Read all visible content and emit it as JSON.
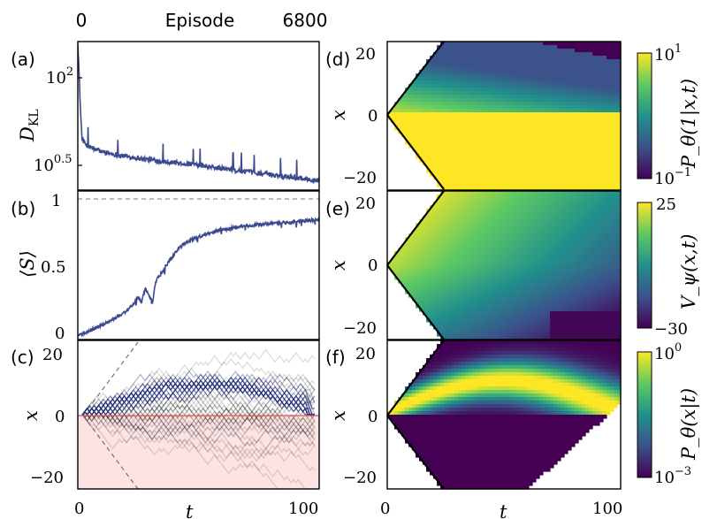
{
  "top_axis": {
    "label": "Episode",
    "ticks": [
      "0",
      "6800"
    ],
    "range": [
      0,
      6800
    ]
  },
  "chart_data": [
    {
      "id": "a",
      "panel_label": "(a)",
      "type": "line",
      "ylabel": "D_KL",
      "yscale": "log",
      "ylim": [
        2.3,
        160
      ],
      "yticks": [
        {
          "value": 100,
          "label": "10^2"
        },
        {
          "value": 3.16,
          "label": "10^0.5"
        }
      ],
      "xlim": [
        0,
        6800
      ],
      "series": [
        {
          "color": "#3b4a8c",
          "points": [
            [
              0,
              160
            ],
            [
              40,
              60
            ],
            [
              80,
              20
            ],
            [
              120,
              10
            ],
            [
              200,
              8.6
            ],
            [
              400,
              7.6
            ],
            [
              700,
              6.9
            ],
            [
              1000,
              6.4
            ],
            [
              1500,
              5.9
            ],
            [
              2000,
              5.5
            ],
            [
              2500,
              5.2
            ],
            [
              3000,
              4.9
            ],
            [
              3500,
              4.6
            ],
            [
              4000,
              4.3
            ],
            [
              4500,
              4.0
            ],
            [
              5000,
              3.8
            ],
            [
              5500,
              3.55
            ],
            [
              6000,
              3.35
            ],
            [
              6500,
              3.15
            ],
            [
              6800,
              3.05
            ]
          ]
        }
      ]
    },
    {
      "id": "b",
      "panel_label": "(b)",
      "type": "line",
      "ylabel": "⟨S⟩",
      "ylim": [
        -0.03,
        1.07
      ],
      "yticks": [
        {
          "value": 1,
          "label": "1"
        },
        {
          "value": 0.5,
          "label": "0.5"
        },
        {
          "value": 0,
          "label": "0"
        }
      ],
      "xlim": [
        0,
        6800
      ],
      "reference_line": 1,
      "series": [
        {
          "color": "#3b4a8c",
          "points": [
            [
              0,
              0
            ],
            [
              300,
              0.03
            ],
            [
              700,
              0.08
            ],
            [
              1000,
              0.12
            ],
            [
              1300,
              0.17
            ],
            [
              1500,
              0.21
            ],
            [
              1700,
              0.28
            ],
            [
              1800,
              0.25
            ],
            [
              1900,
              0.35
            ],
            [
              2000,
              0.3
            ],
            [
              2100,
              0.24
            ],
            [
              2200,
              0.4
            ],
            [
              2400,
              0.48
            ],
            [
              2600,
              0.56
            ],
            [
              2800,
              0.63
            ],
            [
              3000,
              0.68
            ],
            [
              3300,
              0.72
            ],
            [
              3600,
              0.75
            ],
            [
              4000,
              0.78
            ],
            [
              4500,
              0.8
            ],
            [
              5000,
              0.82
            ],
            [
              5500,
              0.83
            ],
            [
              6000,
              0.84
            ],
            [
              6500,
              0.85
            ],
            [
              6800,
              0.86
            ]
          ]
        }
      ]
    },
    {
      "id": "c",
      "panel_label": "(c)",
      "type": "line",
      "xlabel": "t",
      "ylabel": "x",
      "xlim": [
        -2,
        102
      ],
      "ylim": [
        -24,
        24
      ],
      "xticks": [
        "0",
        "100"
      ],
      "yticks": [
        "20",
        "0",
        "−20"
      ],
      "description_free": true,
      "boundary": {
        "slope_t_max": 23,
        "x_max": 23
      },
      "trajectories": {
        "blue_count": 30,
        "black_count": 40,
        "blue_color": "#24307a",
        "black_color": "#333333"
      }
    },
    {
      "id": "d",
      "panel_label": "(d)",
      "type": "heatmap",
      "xlabel": "",
      "ylabel": "x",
      "yticks": [
        "20",
        "0",
        "−20"
      ],
      "colorbar": {
        "label": "P_θ(1|x,t)",
        "scale": "log",
        "max_label": "10^1",
        "min_label": "10^-1"
      }
    },
    {
      "id": "e",
      "panel_label": "(e)",
      "type": "heatmap",
      "ylabel": "x",
      "yticks": [
        "20",
        "0",
        "−20"
      ],
      "colorbar": {
        "label": "V_ψ(x,t)",
        "max_label": "25",
        "min_label": "−30",
        "range": [
          -30,
          25
        ]
      }
    },
    {
      "id": "f",
      "panel_label": "(f)",
      "type": "heatmap",
      "xlabel": "t",
      "ylabel": "x",
      "xticks": [
        "0",
        "100"
      ],
      "yticks": [
        "20",
        "0",
        "−20"
      ],
      "colorbar": {
        "label": "P_θ(x|t)",
        "scale": "log",
        "max_label": "10^0",
        "min_label": "10^-3"
      }
    }
  ],
  "colors": {
    "line": "#3b4a8c",
    "shade": "#fde3e3",
    "redline": "#e05050",
    "empty": "#ffffff"
  }
}
